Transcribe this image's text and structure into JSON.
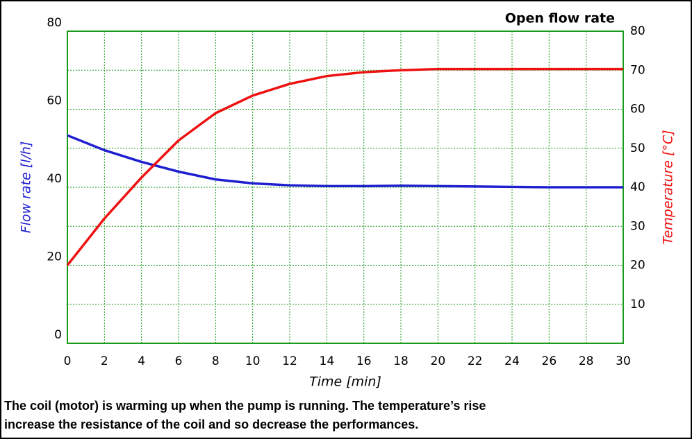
{
  "chart_data": {
    "type": "line",
    "title": "Open flow rate",
    "x_label": "Time [min]",
    "y_label": "Flow rate [l/h]",
    "y2_label": "Temperature [°C]",
    "caption": [
      "The coil (motor) is warming up when the pump is running. The temperature’s rise",
      "increase the resistance of the coil and so decrease the performances."
    ],
    "x": [
      0,
      2,
      4,
      6,
      8,
      10,
      12,
      14,
      16,
      18,
      20,
      22,
      24,
      26,
      28,
      30
    ],
    "xlim": [
      0,
      30
    ],
    "xticks": [
      0,
      2,
      4,
      6,
      8,
      10,
      12,
      14,
      16,
      18,
      20,
      22,
      24,
      26,
      28,
      30
    ],
    "ylim": [
      0,
      80
    ],
    "yticks": [
      0,
      20,
      40,
      60,
      80
    ],
    "y2lim": [
      0,
      80
    ],
    "y2ticks": [
      10,
      20,
      30,
      40,
      50,
      60,
      70,
      80
    ],
    "grid": true,
    "axis_color": "#1a9a1a",
    "series": [
      {
        "name": "Flow rate [l/h]",
        "color": "#1f1fd0",
        "values": [
          53.3,
          49.5,
          46.5,
          44,
          42,
          41,
          40.5,
          40.3,
          40.3,
          40.4,
          40.3,
          40.2,
          40.1,
          40,
          40,
          40
        ]
      },
      {
        "name": "Temperature [°C]",
        "color": "#ee1111",
        "axis": "y2",
        "values": [
          20,
          32,
          42.5,
          52,
          59,
          63.5,
          66.5,
          68.5,
          69.5,
          70,
          70.3,
          70.3,
          70.3,
          70.3,
          70.3,
          70.3
        ]
      }
    ]
  }
}
